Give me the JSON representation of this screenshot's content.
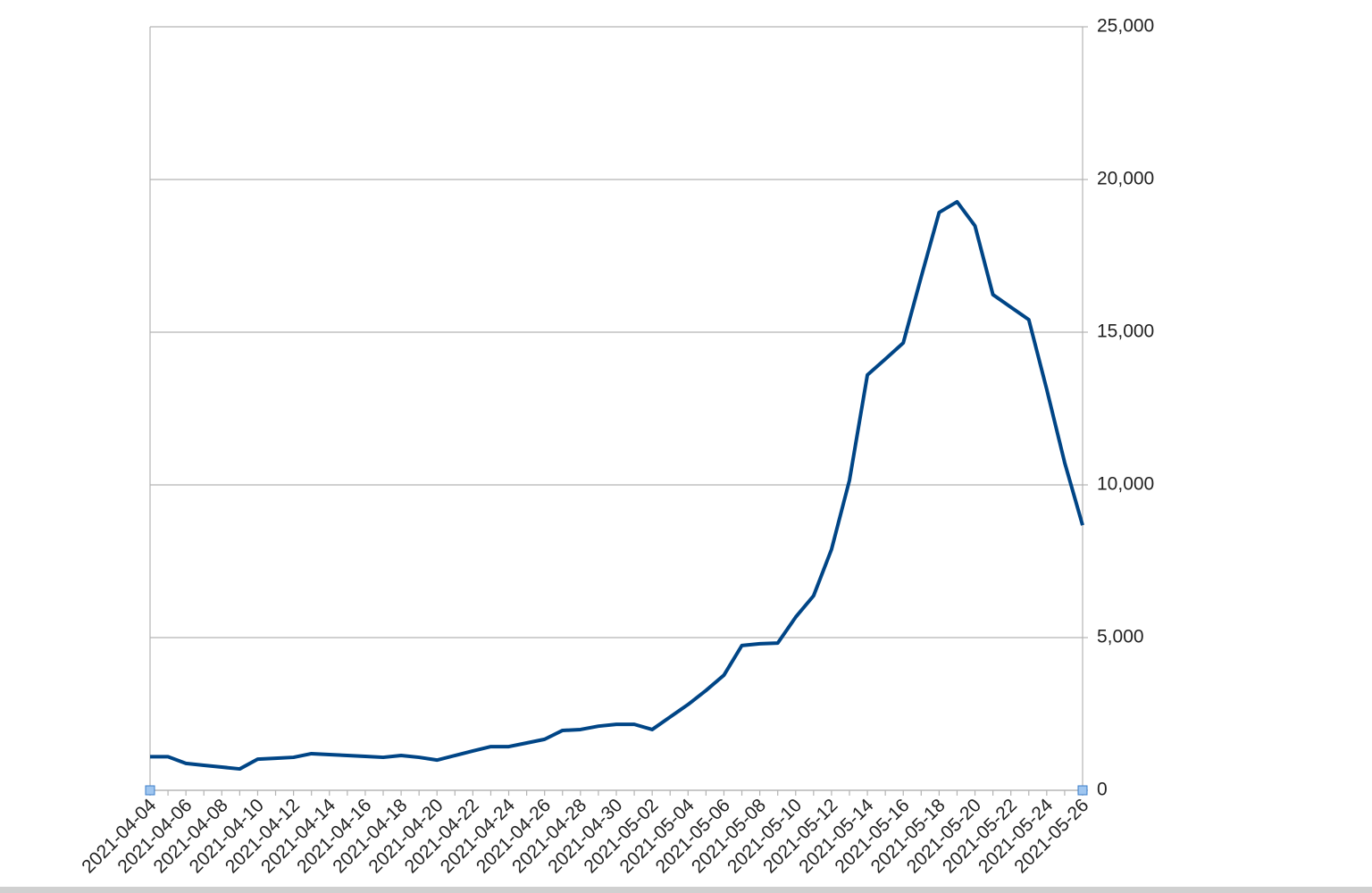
{
  "chart_data": {
    "type": "line",
    "categories": [
      "2021-04-04",
      null,
      "2021-04-06",
      null,
      "2021-04-08",
      null,
      "2021-04-10",
      null,
      "2021-04-12",
      null,
      "2021-04-14",
      null,
      "2021-04-16",
      null,
      "2021-04-18",
      null,
      "2021-04-20",
      null,
      "2021-04-22",
      null,
      "2021-04-24",
      null,
      "2021-04-26",
      null,
      "2021-04-28",
      null,
      "2021-04-30",
      null,
      "2021-05-02",
      null,
      "2021-05-04",
      null,
      "2021-05-06",
      null,
      "2021-05-08",
      null,
      "2021-05-10",
      null,
      "2021-05-12",
      null,
      "2021-05-14",
      null,
      "2021-05-16",
      null,
      "2021-05-18",
      null,
      "2021-05-20",
      null,
      "2021-05-22",
      null,
      "2021-05-24",
      null,
      "2021-05-26"
    ],
    "series": [
      {
        "color": "#004586",
        "values": [
          1100,
          1100,
          880,
          820,
          760,
          700,
          1020,
          1050,
          1080,
          1200,
          1170,
          1140,
          1110,
          1080,
          1140,
          1080,
          990,
          1140,
          1290,
          1430,
          1430,
          1550,
          1670,
          1960,
          1990,
          2100,
          2160,
          2160,
          1990,
          2400,
          2810,
          3270,
          3770,
          4740,
          4800,
          4820,
          5670,
          6370,
          7890,
          10150,
          13600,
          14120,
          14650,
          16810,
          18920,
          19270,
          18480,
          16230,
          15820,
          15410,
          13130,
          10730,
          8680
        ]
      }
    ],
    "ylim": [
      0,
      25000
    ],
    "yticks": [
      0,
      {
        "value": 5000,
        "label": "5,000"
      },
      {
        "value": 10000,
        "label": "10,000"
      },
      {
        "value": 15000,
        "label": "15,000"
      },
      {
        "value": 20000,
        "label": "20,000"
      },
      {
        "value": 25000,
        "label": "25,000"
      }
    ],
    "y_axis_side": "right",
    "grid": true
  }
}
